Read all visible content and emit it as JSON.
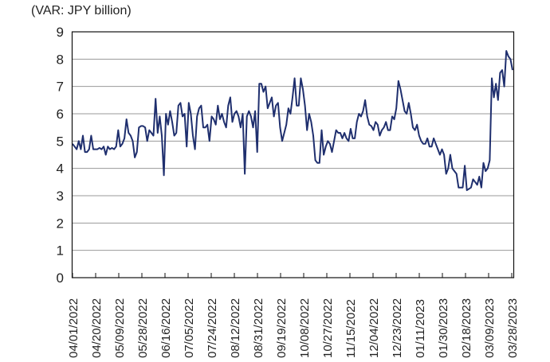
{
  "chart_data": {
    "type": "line",
    "title": "",
    "unit_label": "(VAR: JPY billion)",
    "xlabel": "",
    "ylabel": "(VAR: JPY billion)",
    "ylim": [
      0,
      9
    ],
    "yticks": [
      "0",
      "1",
      "2",
      "3",
      "4",
      "5",
      "6",
      "7",
      "8",
      "9"
    ],
    "grid": true,
    "legend": "none",
    "line_color": "#1f2f6e",
    "grid_color": "#9a9a9a",
    "xticks": [
      "04/01/2022",
      "04/20/2022",
      "05/09/2022",
      "05/28/2022",
      "06/16/2022",
      "07/05/2022",
      "07/24/2022",
      "08/12/2022",
      "08/31/2022",
      "09/19/2022",
      "10/08/2022",
      "10/27/2022",
      "11/15/2022",
      "12/04/2022",
      "12/23/2022",
      "01/11/2023",
      "01/30/2023",
      "02/18/2023",
      "03/09/2023",
      "03/28/2023"
    ],
    "series": [
      {
        "name": "VAR",
        "values": [
          4.9,
          4.8,
          4.7,
          5.0,
          4.7,
          5.2,
          4.6,
          4.6,
          4.7,
          5.2,
          4.7,
          4.7,
          4.7,
          4.75,
          4.7,
          4.8,
          4.5,
          4.8,
          4.7,
          4.75,
          4.7,
          4.8,
          5.4,
          4.8,
          4.9,
          5.1,
          5.8,
          5.3,
          5.2,
          5.0,
          4.4,
          4.6,
          5.5,
          5.55,
          5.55,
          5.5,
          5.0,
          5.4,
          5.3,
          5.2,
          6.55,
          5.3,
          5.9,
          5.2,
          3.75,
          6.0,
          5.6,
          6.1,
          5.7,
          5.2,
          5.3,
          6.3,
          6.4,
          5.9,
          6.0,
          4.8,
          6.4,
          6.0,
          5.2,
          4.7,
          5.9,
          6.2,
          6.3,
          5.5,
          5.5,
          5.6,
          5.0,
          5.9,
          5.8,
          5.6,
          6.3,
          5.8,
          6.0,
          5.7,
          5.5,
          6.3,
          6.6,
          5.7,
          6.0,
          6.1,
          5.9,
          5.5,
          6.0,
          3.8,
          5.9,
          6.1,
          5.9,
          5.5,
          6.1,
          4.6,
          7.1,
          7.1,
          6.8,
          7.0,
          6.2,
          6.4,
          6.6,
          5.9,
          6.3,
          6.4,
          5.5,
          5.0,
          5.3,
          5.6,
          6.2,
          6.0,
          6.6,
          7.3,
          6.3,
          6.3,
          7.3,
          6.9,
          6.3,
          5.4,
          6.0,
          5.7,
          5.2,
          4.3,
          4.2,
          4.2,
          5.4,
          4.5,
          4.8,
          5.0,
          4.9,
          4.6,
          5.0,
          5.4,
          5.3,
          5.3,
          5.1,
          5.3,
          5.1,
          5.0,
          5.45,
          5.1,
          5.1,
          5.7,
          6.0,
          5.9,
          6.1,
          6.5,
          5.9,
          5.6,
          5.55,
          5.4,
          5.7,
          5.6,
          5.2,
          5.4,
          5.5,
          5.7,
          5.4,
          5.4,
          5.9,
          5.8,
          6.2,
          7.2,
          6.9,
          6.5,
          6.1,
          6.0,
          6.4,
          6.0,
          5.5,
          5.4,
          5.6,
          5.2,
          5.0,
          4.9,
          4.9,
          5.1,
          4.8,
          4.8,
          5.1,
          4.9,
          4.7,
          4.5,
          4.7,
          4.5,
          3.8,
          4.0,
          4.5,
          4.0,
          3.9,
          3.8,
          3.3,
          3.3,
          3.3,
          4.1,
          3.2,
          3.25,
          3.3,
          3.6,
          3.5,
          3.4,
          3.7,
          3.3,
          4.2,
          3.9,
          4.0,
          4.3,
          7.3,
          6.6,
          7.1,
          6.5,
          7.5,
          7.6,
          7.0,
          8.3,
          8.1,
          8.0,
          7.6
        ]
      }
    ]
  }
}
